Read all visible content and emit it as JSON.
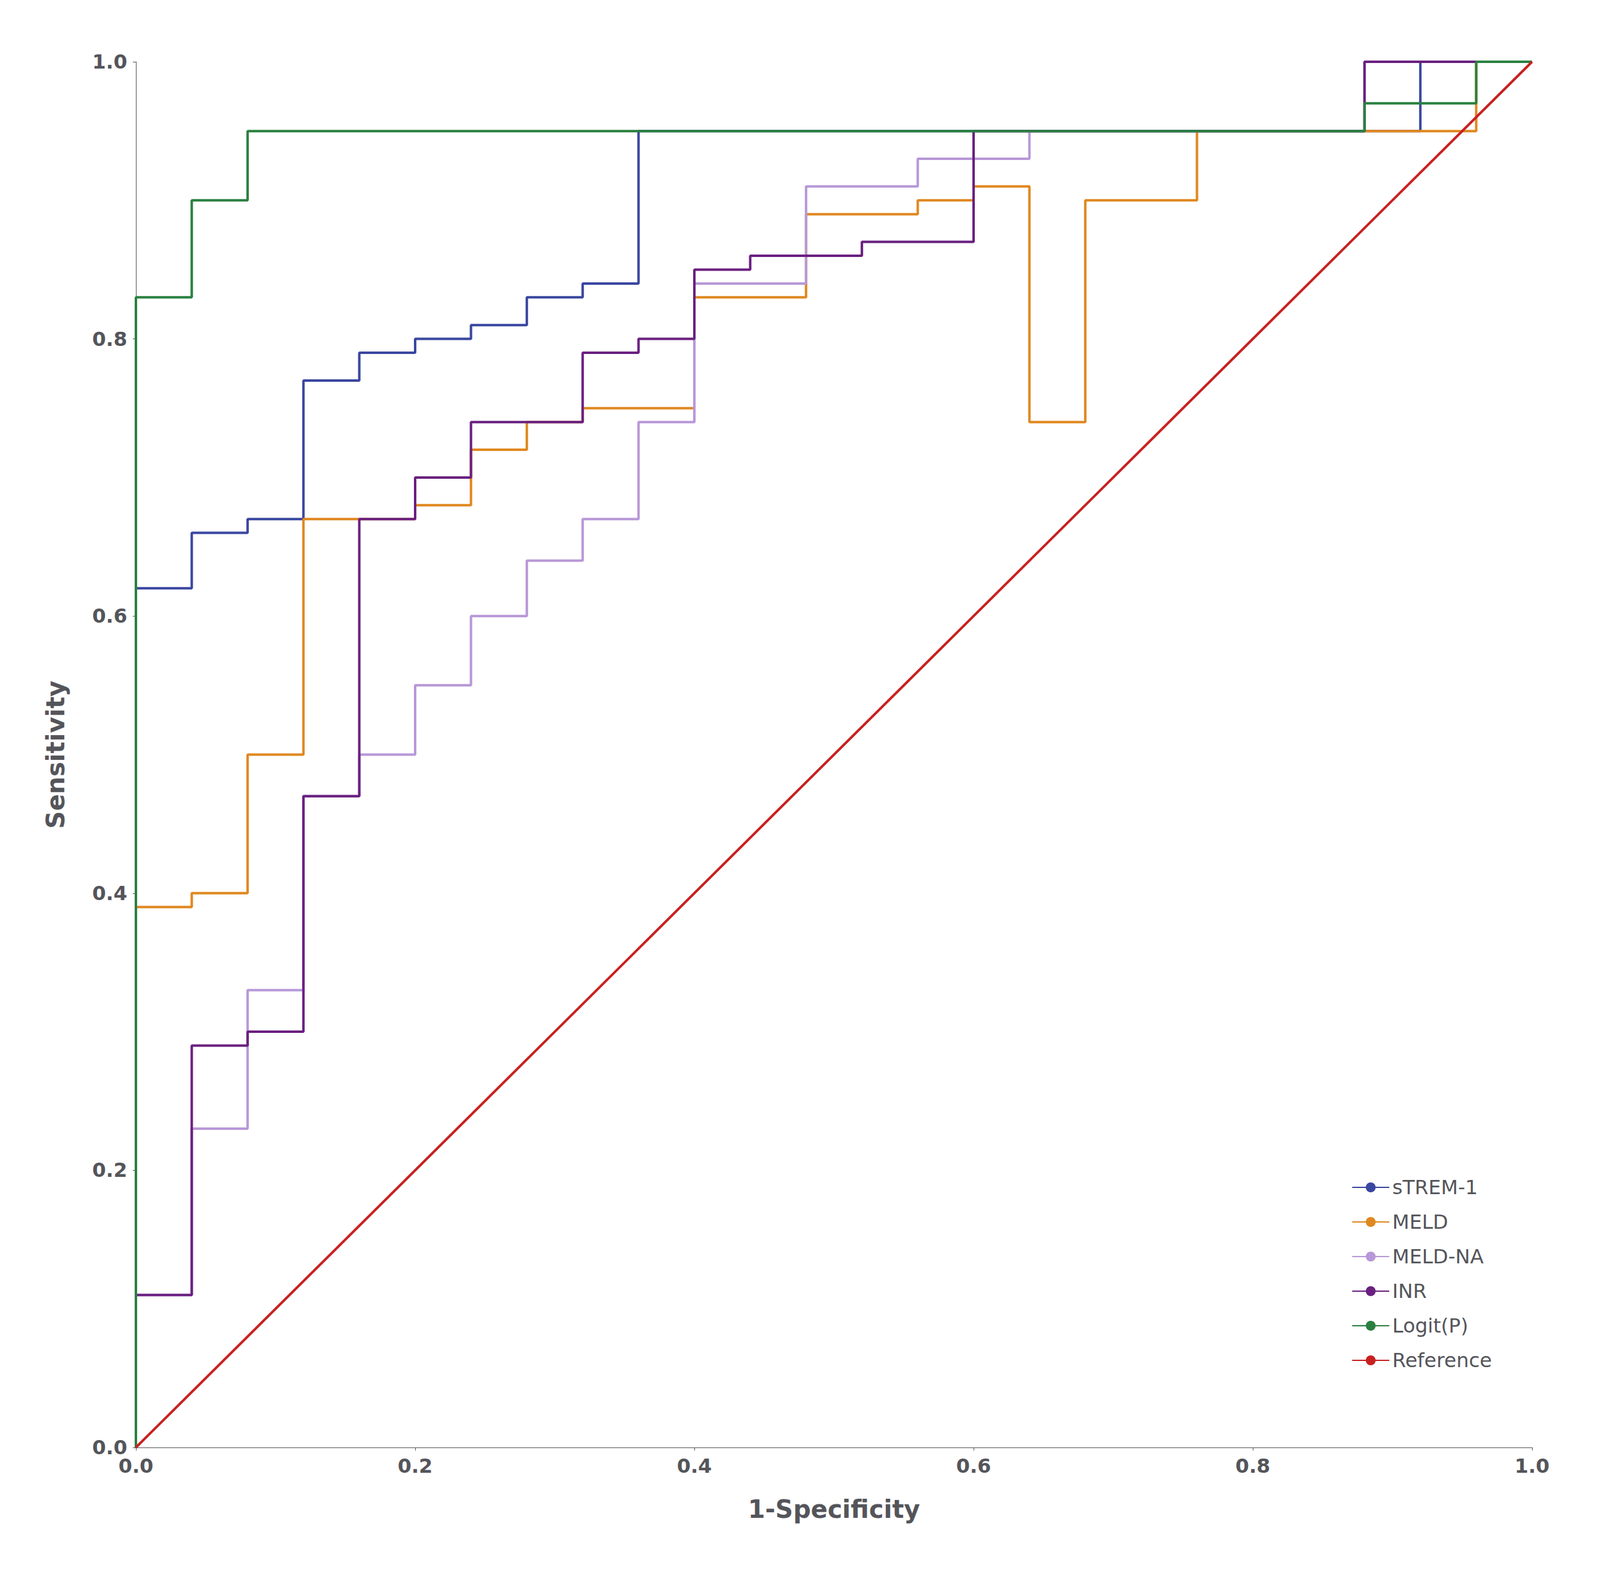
{
  "chart_data": {
    "type": "line",
    "xlabel": "1-Specificity",
    "ylabel": "Sensitivity",
    "xlim": [
      0.0,
      1.0
    ],
    "ylim": [
      0.0,
      1.0
    ],
    "xticks": [
      {
        "value": 0.0,
        "label": "0.0"
      },
      0.2,
      0.4,
      0.6,
      0.8,
      {
        "value": 1.0,
        "label": "1.0"
      }
    ],
    "yticks": [
      {
        "value": 0.0,
        "label": "0.0"
      },
      0.2,
      0.4,
      0.6,
      0.8,
      {
        "value": 1.0,
        "label": "1.0"
      }
    ],
    "grid": false,
    "legend": "lower right",
    "series": [
      {
        "name": "sTREM-1",
        "color": "#3a47a0",
        "x": [
          0.0,
          0.0,
          0.0,
          0.04,
          0.04,
          0.08,
          0.08,
          0.12,
          0.12,
          0.16,
          0.16,
          0.2,
          0.2,
          0.24,
          0.24,
          0.28,
          0.28,
          0.32,
          0.32,
          0.36,
          0.36,
          0.44,
          0.44,
          0.52,
          0.52,
          0.6,
          0.6,
          0.64,
          0.64,
          0.92,
          0.92,
          1.0
        ],
        "values": [
          0.0,
          0.39,
          0.62,
          0.62,
          0.66,
          0.66,
          0.67,
          0.67,
          0.77,
          0.77,
          0.79,
          0.79,
          0.8,
          0.8,
          0.81,
          0.81,
          0.83,
          0.83,
          0.84,
          0.84,
          0.95,
          0.95,
          0.95,
          0.95,
          0.95,
          0.95,
          0.95,
          0.95,
          0.95,
          0.95,
          1.0,
          1.0
        ]
      },
      {
        "name": "MELD",
        "color": "#e08820",
        "x": [
          0.0,
          0.0,
          0.0,
          0.04,
          0.04,
          0.08,
          0.08,
          0.12,
          0.12,
          0.2,
          0.2,
          0.24,
          0.24,
          0.28,
          0.28,
          0.32,
          0.32,
          0.4,
          0.4,
          0.48,
          0.48,
          0.56,
          0.56,
          0.6,
          0.6,
          0.64,
          0.64,
          0.68,
          0.68,
          0.76,
          0.76,
          0.88,
          0.88,
          0.96,
          0.96,
          1.0
        ],
        "values": [
          0.0,
          0.06,
          0.39,
          0.39,
          0.4,
          0.4,
          0.5,
          0.5,
          0.67,
          0.67,
          0.68,
          0.68,
          0.72,
          0.72,
          0.74,
          0.74,
          0.75,
          0.75,
          0.83,
          0.83,
          0.89,
          0.89,
          0.9,
          0.9,
          0.91,
          0.91,
          0.74,
          0.74,
          0.9,
          0.9,
          0.95,
          0.95,
          0.95,
          0.95,
          1.0,
          1.0
        ]
      },
      {
        "name": "MELD-NA",
        "color": "#b898d8",
        "x": [
          0.0,
          0.0,
          0.04,
          0.04,
          0.08,
          0.08,
          0.12,
          0.12,
          0.16,
          0.16,
          0.2,
          0.2,
          0.24,
          0.24,
          0.28,
          0.28,
          0.32,
          0.32,
          0.36,
          0.36,
          0.4,
          0.4,
          0.48,
          0.48,
          0.56,
          0.56,
          0.64,
          0.64,
          0.72,
          0.72,
          0.88,
          0.88,
          1.0
        ],
        "values": [
          0.0,
          0.11,
          0.11,
          0.23,
          0.23,
          0.33,
          0.33,
          0.47,
          0.47,
          0.5,
          0.5,
          0.55,
          0.55,
          0.6,
          0.6,
          0.64,
          0.64,
          0.67,
          0.67,
          0.74,
          0.74,
          0.84,
          0.84,
          0.91,
          0.91,
          0.93,
          0.93,
          0.95,
          0.95,
          0.95,
          0.95,
          1.0,
          1.0
        ]
      },
      {
        "name": "INR",
        "color": "#6a2080",
        "x": [
          0.0,
          0.0,
          0.04,
          0.04,
          0.08,
          0.08,
          0.12,
          0.12,
          0.16,
          0.16,
          0.2,
          0.2,
          0.24,
          0.24,
          0.32,
          0.32,
          0.36,
          0.36,
          0.4,
          0.4,
          0.44,
          0.44,
          0.52,
          0.52,
          0.6,
          0.6,
          0.68,
          0.68,
          0.88,
          0.88,
          1.0
        ],
        "values": [
          0.0,
          0.11,
          0.11,
          0.29,
          0.29,
          0.3,
          0.3,
          0.47,
          0.47,
          0.67,
          0.67,
          0.7,
          0.7,
          0.74,
          0.74,
          0.79,
          0.79,
          0.8,
          0.8,
          0.85,
          0.85,
          0.86,
          0.86,
          0.87,
          0.87,
          0.95,
          0.95,
          0.95,
          0.95,
          1.0,
          1.0
        ]
      },
      {
        "name": "Logit(P)",
        "color": "#2a8040",
        "x": [
          0.0,
          0.0,
          0.0,
          0.04,
          0.04,
          0.08,
          0.08,
          0.12,
          0.12,
          0.16,
          0.16,
          0.2,
          0.2,
          0.24,
          0.24,
          0.88,
          0.88,
          0.92,
          0.92,
          0.96,
          0.96,
          1.0
        ],
        "values": [
          0.0,
          0.62,
          0.83,
          0.83,
          0.9,
          0.9,
          0.95,
          0.95,
          0.95,
          0.95,
          0.95,
          0.95,
          0.95,
          0.95,
          0.95,
          0.95,
          0.97,
          0.97,
          0.97,
          0.97,
          1.0,
          1.0
        ]
      },
      {
        "name": "Reference",
        "color": "#c82020",
        "x": [
          0,
          1
        ],
        "values": [
          0,
          1
        ]
      }
    ]
  }
}
